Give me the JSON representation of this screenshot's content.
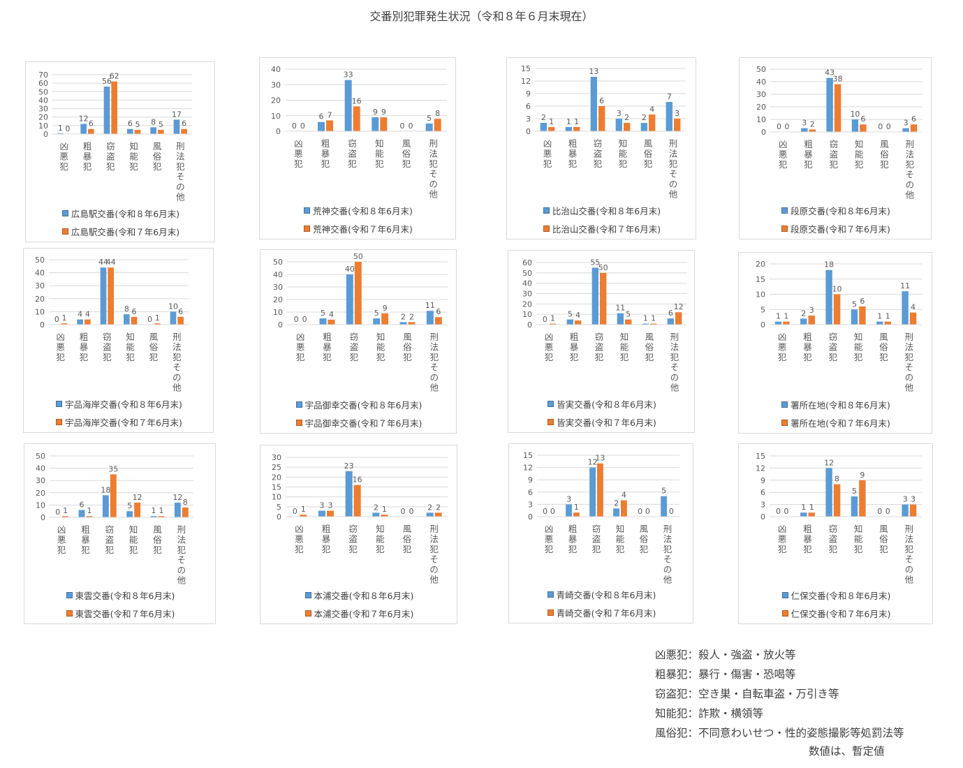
{
  "title": "交番別犯罪発生状況（令和８年６月末現在）",
  "colors": {
    "current": "#5b9bd5",
    "previous": "#ed7d31",
    "axis": "#d9d9d9",
    "grid": "#d9d9d9",
    "text": "#595959"
  },
  "chart_data": [
    {
      "type": "bar",
      "categories": [
        "凶悪犯",
        "粗暴犯",
        "窃盗犯",
        "知能犯",
        "風俗犯",
        "刑法犯その他"
      ],
      "ylim": [
        0,
        70
      ],
      "yticks": [
        0,
        10,
        20,
        30,
        40,
        50,
        60,
        70
      ],
      "series": [
        {
          "name": "広島駅交番(令和８年6月末)",
          "values": [
            1,
            12,
            56,
            6,
            8,
            17
          ]
        },
        {
          "name": "広島駅交番(令和７年6月末)",
          "values": [
            0,
            6,
            62,
            5,
            5,
            6
          ]
        }
      ]
    },
    {
      "type": "bar",
      "categories": [
        "凶悪犯",
        "粗暴犯",
        "窃盗犯",
        "知能犯",
        "風俗犯",
        "刑法犯その他"
      ],
      "ylim": [
        0,
        40
      ],
      "yticks": [
        0,
        10,
        20,
        30,
        40
      ],
      "series": [
        {
          "name": "荒神交番(令和８年6月末)",
          "values": [
            0,
            6,
            33,
            9,
            0,
            5
          ]
        },
        {
          "name": "荒神交番(令和７年6月末)",
          "values": [
            0,
            7,
            16,
            9,
            0,
            8
          ]
        }
      ]
    },
    {
      "type": "bar",
      "categories": [
        "凶悪犯",
        "粗暴犯",
        "窃盗犯",
        "知能犯",
        "風俗犯",
        "刑法犯その他"
      ],
      "ylim": [
        0,
        15
      ],
      "yticks": [
        0,
        3,
        6,
        9,
        12,
        15
      ],
      "series": [
        {
          "name": "比治山交番(令和８年6月末)",
          "values": [
            2,
            1,
            13,
            3,
            2,
            7
          ]
        },
        {
          "name": "比治山交番(令和７年6月末)",
          "values": [
            1,
            1,
            6,
            2,
            4,
            3
          ]
        }
      ]
    },
    {
      "type": "bar",
      "categories": [
        "凶悪犯",
        "粗暴犯",
        "窃盗犯",
        "知能犯",
        "風俗犯",
        "刑法犯その他"
      ],
      "ylim": [
        0,
        50
      ],
      "yticks": [
        0,
        10,
        20,
        30,
        40,
        50
      ],
      "series": [
        {
          "name": "段原交番(令和８年6月末)",
          "values": [
            0,
            3,
            43,
            10,
            0,
            3
          ]
        },
        {
          "name": "段原交番(令和７年6月末)",
          "values": [
            0,
            2,
            38,
            6,
            0,
            6
          ]
        }
      ]
    },
    {
      "type": "bar",
      "categories": [
        "凶悪犯",
        "粗暴犯",
        "窃盗犯",
        "知能犯",
        "風俗犯",
        "刑法犯その他"
      ],
      "ylim": [
        0,
        50
      ],
      "yticks": [
        0,
        10,
        20,
        30,
        40,
        50
      ],
      "series": [
        {
          "name": "宇品海岸交番(令和８年6月末)",
          "values": [
            0,
            4,
            44,
            8,
            0,
            10
          ]
        },
        {
          "name": "宇品海岸交番(令和７年6月末)",
          "values": [
            1,
            4,
            44,
            6,
            1,
            6
          ]
        }
      ]
    },
    {
      "type": "bar",
      "categories": [
        "凶悪犯",
        "粗暴犯",
        "窃盗犯",
        "知能犯",
        "風俗犯",
        "刑法犯その他"
      ],
      "ylim": [
        0,
        50
      ],
      "yticks": [
        0,
        10,
        20,
        30,
        40,
        50
      ],
      "series": [
        {
          "name": "宇品御幸交番(令和８年6月末)",
          "values": [
            0,
            5,
            40,
            5,
            2,
            11
          ]
        },
        {
          "name": "宇品御幸交番(令和７年6月末)",
          "values": [
            0,
            4,
            50,
            9,
            2,
            6
          ]
        }
      ]
    },
    {
      "type": "bar",
      "categories": [
        "凶悪犯",
        "粗暴犯",
        "窃盗犯",
        "知能犯",
        "風俗犯",
        "刑法犯その他"
      ],
      "ylim": [
        0,
        60
      ],
      "yticks": [
        0,
        10,
        20,
        30,
        40,
        50,
        60
      ],
      "series": [
        {
          "name": "皆実交番(令和８年6月末)",
          "values": [
            0,
            5,
            55,
            11,
            1,
            6
          ]
        },
        {
          "name": "皆実交番(令和７年6月末)",
          "values": [
            1,
            4,
            50,
            5,
            1,
            12
          ]
        }
      ]
    },
    {
      "type": "bar",
      "categories": [
        "凶悪犯",
        "粗暴犯",
        "窃盗犯",
        "知能犯",
        "風俗犯",
        "刑法犯その他"
      ],
      "ylim": [
        0,
        20
      ],
      "yticks": [
        0,
        5,
        10,
        15,
        20
      ],
      "series": [
        {
          "name": "署所在地(令和８年6月末)",
          "values": [
            1,
            2,
            18,
            5,
            1,
            11
          ]
        },
        {
          "name": "署所在地(令和７年6月末)",
          "values": [
            1,
            3,
            10,
            6,
            1,
            4
          ]
        }
      ]
    },
    {
      "type": "bar",
      "categories": [
        "凶悪犯",
        "粗暴犯",
        "窃盗犯",
        "知能犯",
        "風俗犯",
        "刑法犯その他"
      ],
      "ylim": [
        0,
        50
      ],
      "yticks": [
        0,
        10,
        20,
        30,
        40,
        50
      ],
      "series": [
        {
          "name": "東雲交番(令和８年6月末)",
          "values": [
            0,
            6,
            18,
            5,
            1,
            12
          ]
        },
        {
          "name": "東雲交番(令和７年6月末)",
          "values": [
            1,
            1,
            35,
            12,
            1,
            8
          ]
        }
      ]
    },
    {
      "type": "bar",
      "categories": [
        "凶悪犯",
        "粗暴犯",
        "窃盗犯",
        "知能犯",
        "風俗犯",
        "刑法犯その他"
      ],
      "ylim": [
        0,
        30
      ],
      "yticks": [
        0,
        5,
        10,
        15,
        20,
        25,
        30
      ],
      "series": [
        {
          "name": "本浦交番(令和８年6月末)",
          "values": [
            0,
            3,
            23,
            2,
            0,
            2
          ]
        },
        {
          "name": "本浦交番(令和７年6月末)",
          "values": [
            1,
            3,
            16,
            1,
            0,
            2
          ]
        }
      ]
    },
    {
      "type": "bar",
      "categories": [
        "凶悪犯",
        "粗暴犯",
        "窃盗犯",
        "知能犯",
        "風俗犯",
        "刑法犯その他"
      ],
      "ylim": [
        0,
        15
      ],
      "yticks": [
        0,
        3,
        6,
        9,
        12,
        15
      ],
      "series": [
        {
          "name": "青崎交番(令和８年6月末)",
          "values": [
            0,
            3,
            12,
            2,
            0,
            5
          ]
        },
        {
          "name": "青崎交番(令和７年6月末)",
          "values": [
            0,
            1,
            13,
            4,
            0,
            0
          ]
        }
      ]
    },
    {
      "type": "bar",
      "categories": [
        "凶悪犯",
        "粗暴犯",
        "窃盗犯",
        "知能犯",
        "風俗犯",
        "刑法犯その他"
      ],
      "ylim": [
        0,
        15
      ],
      "yticks": [
        0,
        3,
        6,
        9,
        12,
        15
      ],
      "series": [
        {
          "name": "仁保交番(令和８年6月末)",
          "values": [
            0,
            1,
            12,
            5,
            0,
            3
          ]
        },
        {
          "name": "仁保交番(令和７年6月末)",
          "values": [
            0,
            1,
            8,
            9,
            0,
            3
          ]
        }
      ]
    }
  ],
  "notes": [
    "凶悪犯：殺人・強盗・放火等",
    "粗暴犯：暴行・傷害・恐喝等",
    "窃盗犯：空き巣・自転車盗・万引き等",
    "知能犯：詐欺・横領等",
    "風俗犯：不同意わいせつ・性的姿態撮影等処罰法等"
  ],
  "tentative_note": "数値は、暫定値"
}
